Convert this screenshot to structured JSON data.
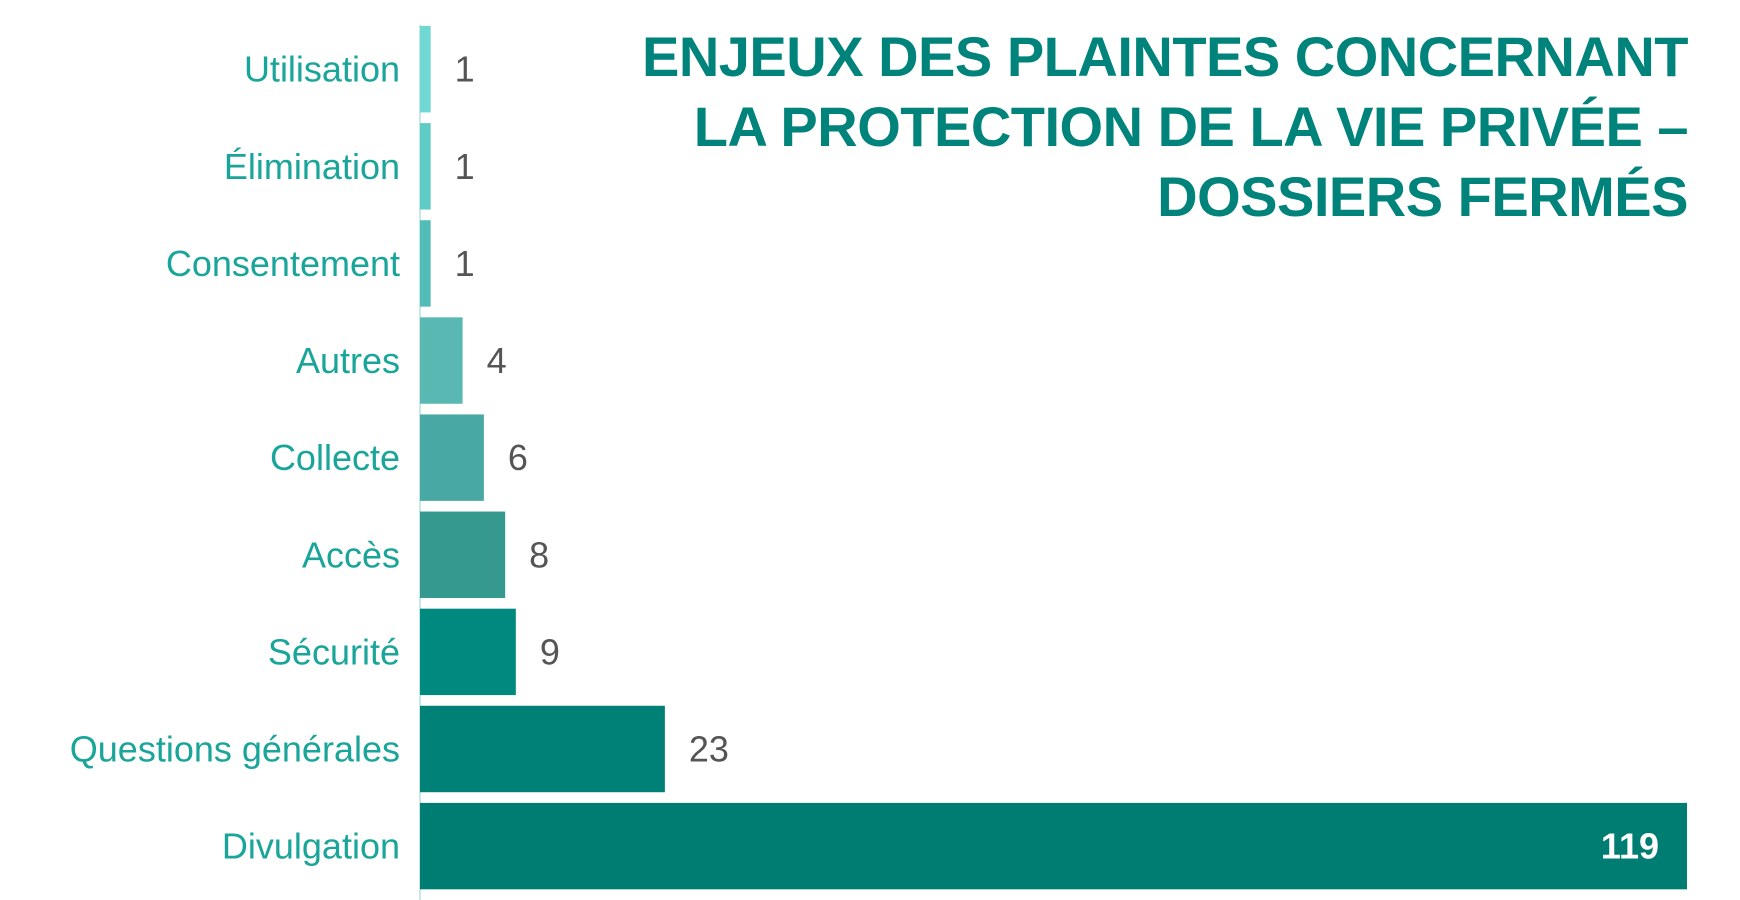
{
  "chart_data": {
    "type": "bar",
    "orientation": "horizontal",
    "title_lines": [
      "ENJEUX DES PLAINTES CONCERNANT",
      "LA PROTECTION DE LA VIE PRIVÉE –",
      "DOSSIERS FERMÉS"
    ],
    "categories": [
      "Utilisation",
      "Élimination",
      "Consentement",
      "Autres",
      "Collecte",
      "Accès",
      "Sécurité",
      "Questions générales",
      "Divulgation"
    ],
    "values": [
      1,
      1,
      1,
      4,
      6,
      8,
      9,
      23,
      119
    ],
    "xlim": [
      0,
      119
    ],
    "grid": false,
    "colors": [
      "#6fd8d2",
      "#5fcbc5",
      "#52bdb7",
      "#5ab8b2",
      "#48a9a4",
      "#35998f",
      "#00897e",
      "#008178",
      "#007d73"
    ]
  }
}
